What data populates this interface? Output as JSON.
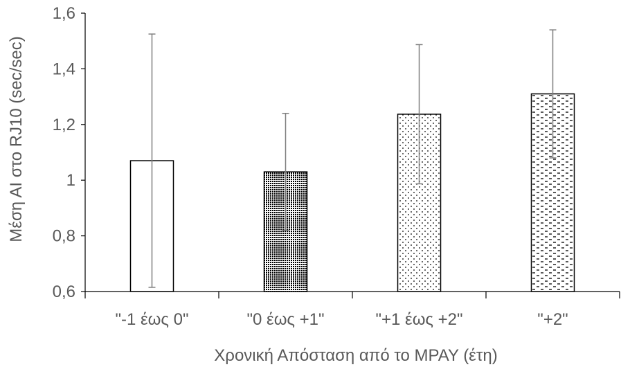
{
  "chart_data": {
    "type": "bar",
    "title": "",
    "xlabel": "Χρονική  Απόσταση από το ΜΡΑΥ (έτη)",
    "ylabel": "Μέση ΑΙ στο RJ10 (sec/sec)",
    "ylim": [
      0.6,
      1.6
    ],
    "ytick_step": 0.2,
    "ytick_labels": [
      "0,6",
      "0,8",
      "1",
      "1,2",
      "1,4",
      "1,6"
    ],
    "categories": [
      "\"-1 έως 0\"",
      "\"0 έως +1\"",
      "\"+1 έως +2\"",
      "\"+2\""
    ],
    "values": [
      1.07,
      1.03,
      1.237,
      1.31
    ],
    "error_bars": [
      0.455,
      0.21,
      0.25,
      0.23
    ],
    "patterns": [
      "none",
      "dense-dots",
      "sparse-dots",
      "dashes"
    ],
    "grid": false,
    "legend": "none"
  }
}
